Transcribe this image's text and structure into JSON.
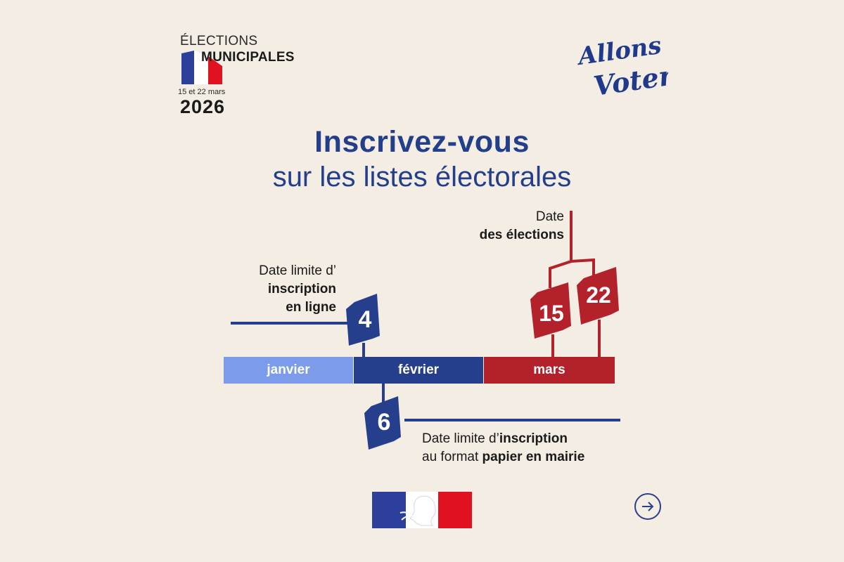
{
  "badge": {
    "line1": "ÉLECTIONS",
    "line2": "MUNICIPALES",
    "dates": "15 et 22 mars",
    "year": "2026"
  },
  "slogan": {
    "line1": "Allons",
    "line2": "Voter!"
  },
  "title": {
    "main": "Inscrivez-vous",
    "sub": "sur les listes électorales"
  },
  "timeline": {
    "months": [
      "janvier",
      "février",
      "mars"
    ],
    "online_deadline": {
      "day": "4",
      "label_regular": "Date limite d’",
      "label_bold_1": "inscription",
      "label_bold_2": "en ligne"
    },
    "paper_deadline": {
      "day": "6",
      "label_regular_1": "Date limite d’",
      "label_bold_1": "inscription",
      "label_regular_2": "au format ",
      "label_bold_2": "papier en mairie"
    },
    "election_dates": {
      "days": [
        "15",
        "22"
      ],
      "label_regular": "Date",
      "label_bold": "des élections"
    }
  },
  "colors": {
    "background": "#f3ede4",
    "blue_dark": "#263f8d",
    "blue_light": "#7c9bea",
    "red": "#b3212a"
  },
  "icons": {
    "next": "arrow-right-circle-icon",
    "logo": "marianne-logo"
  }
}
